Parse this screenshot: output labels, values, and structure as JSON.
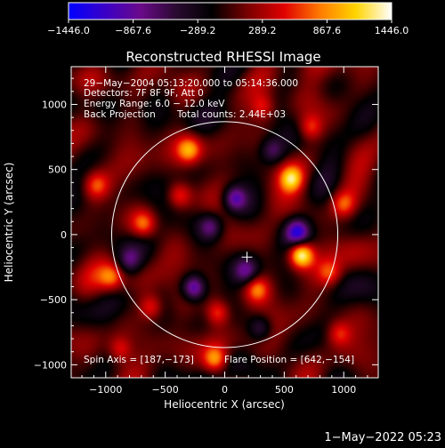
{
  "colors": {
    "background": "#000000",
    "foreground": "#ffffff",
    "colormap": [
      "#0000ff",
      "#3a00c8",
      "#6a0a8a",
      "#2a0a30",
      "#000000",
      "#7a0000",
      "#e00000",
      "#ff7a00",
      "#ffd400",
      "#ffffff"
    ]
  },
  "colorbar": {
    "vmin": -1446.0,
    "vmax": 1446.0,
    "ticks": [
      -1446.0,
      -867.6,
      -289.2,
      289.2,
      867.6,
      1446.0
    ],
    "tick_labels": [
      "−1446.0",
      "−867.6",
      "−289.2",
      "289.2",
      "867.6",
      "1446.0"
    ]
  },
  "chart_data": {
    "type": "heatmap",
    "title": "Reconstructed RHESSI Image",
    "xlabel": "Heliocentric X (arcsec)",
    "ylabel": "Heliocentric Y (arcsec)",
    "xlim": [
      -1290,
      1290
    ],
    "ylim": [
      -1100,
      1290
    ],
    "x_ticks": [
      -1000,
      -500,
      0,
      500,
      1000
    ],
    "x_tick_labels": [
      "−1000",
      "−500",
      "0",
      "500",
      "1000"
    ],
    "y_ticks": [
      -1000,
      -500,
      0,
      500,
      1000
    ],
    "y_tick_labels": [
      "−1000",
      "−500",
      "0",
      "500",
      "1000"
    ],
    "solar_limb": {
      "center": [
        0,
        0
      ],
      "radius_arcsec": 950
    },
    "spin_axis": [
      187,
      -173
    ],
    "flare_position": [
      642,
      -154
    ],
    "sources": [
      {
        "x": 642,
        "y": -154,
        "value": 1446
      },
      {
        "x": 560,
        "y": 430,
        "value": 1000
      },
      {
        "x": -300,
        "y": 650,
        "value": 800
      },
      {
        "x": -680,
        "y": 80,
        "value": 700
      },
      {
        "x": -380,
        "y": 300,
        "value": 640
      },
      {
        "x": -60,
        "y": -600,
        "value": 760
      },
      {
        "x": 270,
        "y": -420,
        "value": 720
      },
      {
        "x": -620,
        "y": -560,
        "value": 680
      },
      {
        "x": 880,
        "y": -300,
        "value": 560
      },
      {
        "x": -950,
        "y": -330,
        "value": 620
      },
      {
        "x": 720,
        "y": 820,
        "value": 640
      },
      {
        "x": -80,
        "y": -960,
        "value": 900
      },
      {
        "x": 1000,
        "y": 230,
        "value": 600
      },
      {
        "x": -1080,
        "y": 380,
        "value": 560
      },
      {
        "x": 320,
        "y": 980,
        "value": 520
      },
      {
        "x": 960,
        "y": -760,
        "value": 560
      },
      {
        "x": -880,
        "y": -880,
        "value": 600
      },
      {
        "x": 80,
        "y": 280,
        "value": -950
      },
      {
        "x": 610,
        "y": 20,
        "value": -1050
      },
      {
        "x": -260,
        "y": -410,
        "value": -1150
      },
      {
        "x": -120,
        "y": 60,
        "value": -700
      },
      {
        "x": 180,
        "y": -280,
        "value": -650
      },
      {
        "x": 400,
        "y": 650,
        "value": -620
      },
      {
        "x": -800,
        "y": -200,
        "value": -560
      },
      {
        "x": 300,
        "y": -720,
        "value": -600
      }
    ]
  },
  "annotations": {
    "time_range": "29−May−2004 05:13:20.000 to 05:14:36.000",
    "detectors": "Detectors: 7F 8F 9F, Att 0",
    "energy_range": "Energy Range: 6.0 − 12.0 keV",
    "method": "Back Projection",
    "total_counts": "Total counts: 2.44E+03",
    "spin_axis_label": "Spin Axis = [187,−173]",
    "flare_position_label": "Flare Position = [642,−154]"
  },
  "timestamp": "1−May−2022 05:23"
}
